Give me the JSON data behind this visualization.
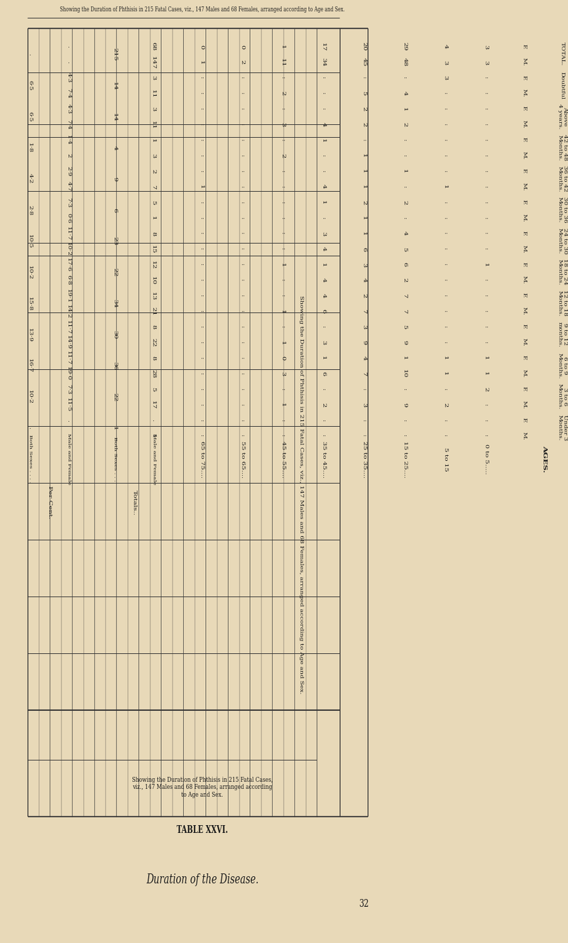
{
  "bg_color": "#E8D9B8",
  "text_color": "#1a1a1a",
  "line_color": "#333333",
  "page_num": "32",
  "page_header": "Duration of the Disease.",
  "table_label": "TABLE XXVI.",
  "table_subtitle": "Showing the Duration of Phthisis in 215 Fatal Cases, viz., 147 Males and 68 Females, arranged according to Age and Sex.",
  "sidebar_text": "Showing the Duration of Phthisis in 215 Fatal Cases, viz., 147 Males and 68 Females, arranged according to Age and Sex.",
  "age_groups": [
    "0 to 5.....",
    "5 to 15",
    "15 to 25....",
    "25 to 35....",
    "35 to 45....",
    "45 to 55....",
    "55 to 65....",
    "65 to 75...."
  ],
  "duration_cols": [
    "Under 3\nMonths.",
    "3 to 6\nMonths.",
    "6 to 9\nMonths.",
    "9 to 12\nmonths.",
    "12 to 18\nMonths.",
    "18 to 24\nMonths.",
    "24 to 30\nMonths.",
    "30 to 36\nMonths.",
    "36 to 42\nMonths.",
    "42 to 48\nMonths.",
    "Above\n4 years.",
    "Doubtful",
    "TOTAL."
  ],
  "data_M": [
    [
      ":",
      ":",
      ":",
      ":",
      ":",
      ":",
      ":",
      ":"
    ],
    [
      ":",
      "2",
      "9",
      "3",
      "2",
      "1",
      ":",
      ":"
    ],
    [
      "1",
      "1",
      "10",
      "7",
      "6",
      "3",
      ":",
      ":"
    ],
    [
      ":",
      ":",
      "9",
      "9",
      "3",
      "1",
      ":",
      ":"
    ],
    [
      ":",
      ":",
      "7",
      "7",
      "6",
      "1",
      ":",
      ":"
    ],
    [
      ":",
      ":",
      "2",
      "4",
      "4",
      ":",
      ":",
      ":"
    ],
    [
      ":",
      ":",
      "5",
      "6",
      "4",
      ":",
      ":",
      ":"
    ],
    [
      ":",
      ":",
      ":",
      "1",
      ":",
      ":",
      ":",
      ":"
    ],
    [
      ":",
      "1",
      ":",
      "1",
      "4",
      ":",
      ":",
      "1"
    ],
    [
      ":",
      ":",
      ":",
      "1",
      ":",
      "2",
      ":",
      ":"
    ],
    [
      ":",
      ":",
      "2",
      "2",
      "4",
      "3",
      ":",
      ":"
    ],
    [
      ":",
      ":",
      "4",
      "5",
      ":",
      "2",
      ":",
      ":"
    ],
    [
      "3",
      "3",
      "48",
      "45",
      "34",
      "11",
      "2",
      "1"
    ]
  ],
  "data_F": [
    [
      ":",
      ":",
      ":",
      ":",
      ":",
      ":",
      ":",
      ":"
    ],
    [
      "2",
      ":",
      ":",
      ":",
      ":",
      ":",
      ":",
      ":"
    ],
    [
      "1",
      "1",
      "1",
      "4",
      "1",
      "0",
      ":",
      ":"
    ],
    [
      ":",
      ":",
      "5",
      "3",
      ":",
      ":",
      ":",
      ":"
    ],
    [
      ":",
      ":",
      "7",
      "2",
      "4",
      ":",
      ":",
      ":"
    ],
    [
      "1",
      ":",
      "6",
      "3",
      "1",
      "1",
      ":",
      ":"
    ],
    [
      ":",
      ":",
      "4",
      "1",
      "3",
      ":",
      ":",
      ":"
    ],
    [
      ":",
      ":",
      "2",
      "2",
      "1",
      ":",
      ":",
      ":"
    ],
    [
      ":",
      ":",
      "1",
      "1",
      ":",
      ":",
      ":",
      ":"
    ],
    [
      ":",
      ":",
      ":",
      ":",
      "1",
      ":",
      ":",
      ":"
    ],
    [
      ":",
      ":",
      "1",
      "2",
      ":",
      ":",
      ":",
      ":"
    ],
    [
      ":",
      "3",
      ":",
      ":",
      ":",
      ":",
      ":",
      ":"
    ],
    [
      "3",
      "4",
      "29",
      "20",
      "17",
      "1",
      "0",
      "0"
    ]
  ],
  "totals_MF_M": [
    "1",
    "17",
    "28",
    "22",
    "21",
    "10",
    "15",
    "1",
    "7",
    "3",
    "11",
    "11",
    "147"
  ],
  "totals_MF_F": [
    ".",
    "5",
    "8",
    "8",
    "13",
    "12",
    "8",
    "5",
    "2",
    "1",
    "3",
    "3",
    "68"
  ],
  "totals_both": [
    "1",
    "22",
    "36",
    "30",
    "34",
    "22",
    "23",
    "6",
    "9",
    "4",
    "14",
    "14",
    "215"
  ],
  "pct_MF_M": [
    ".",
    "11·5",
    "19·0",
    "14·9",
    "14·2",
    "6·8",
    "10·2",
    "0·6",
    "4·7",
    "2",
    "7·4",
    "7·4",
    "."
  ],
  "pct_MF_F": [
    ".",
    "7·3",
    "11·7",
    "11·7",
    "19·1",
    "17·6",
    "11·7",
    "7·3",
    "2·9",
    "1·4",
    "4·3",
    "4·3",
    "."
  ],
  "pct_both": [
    ".",
    "10·2",
    "16·7",
    "13·9",
    "15·8",
    "10·2",
    "10·5",
    "2·8",
    "4·2",
    "1·8",
    "6·5",
    "6·5",
    "."
  ]
}
